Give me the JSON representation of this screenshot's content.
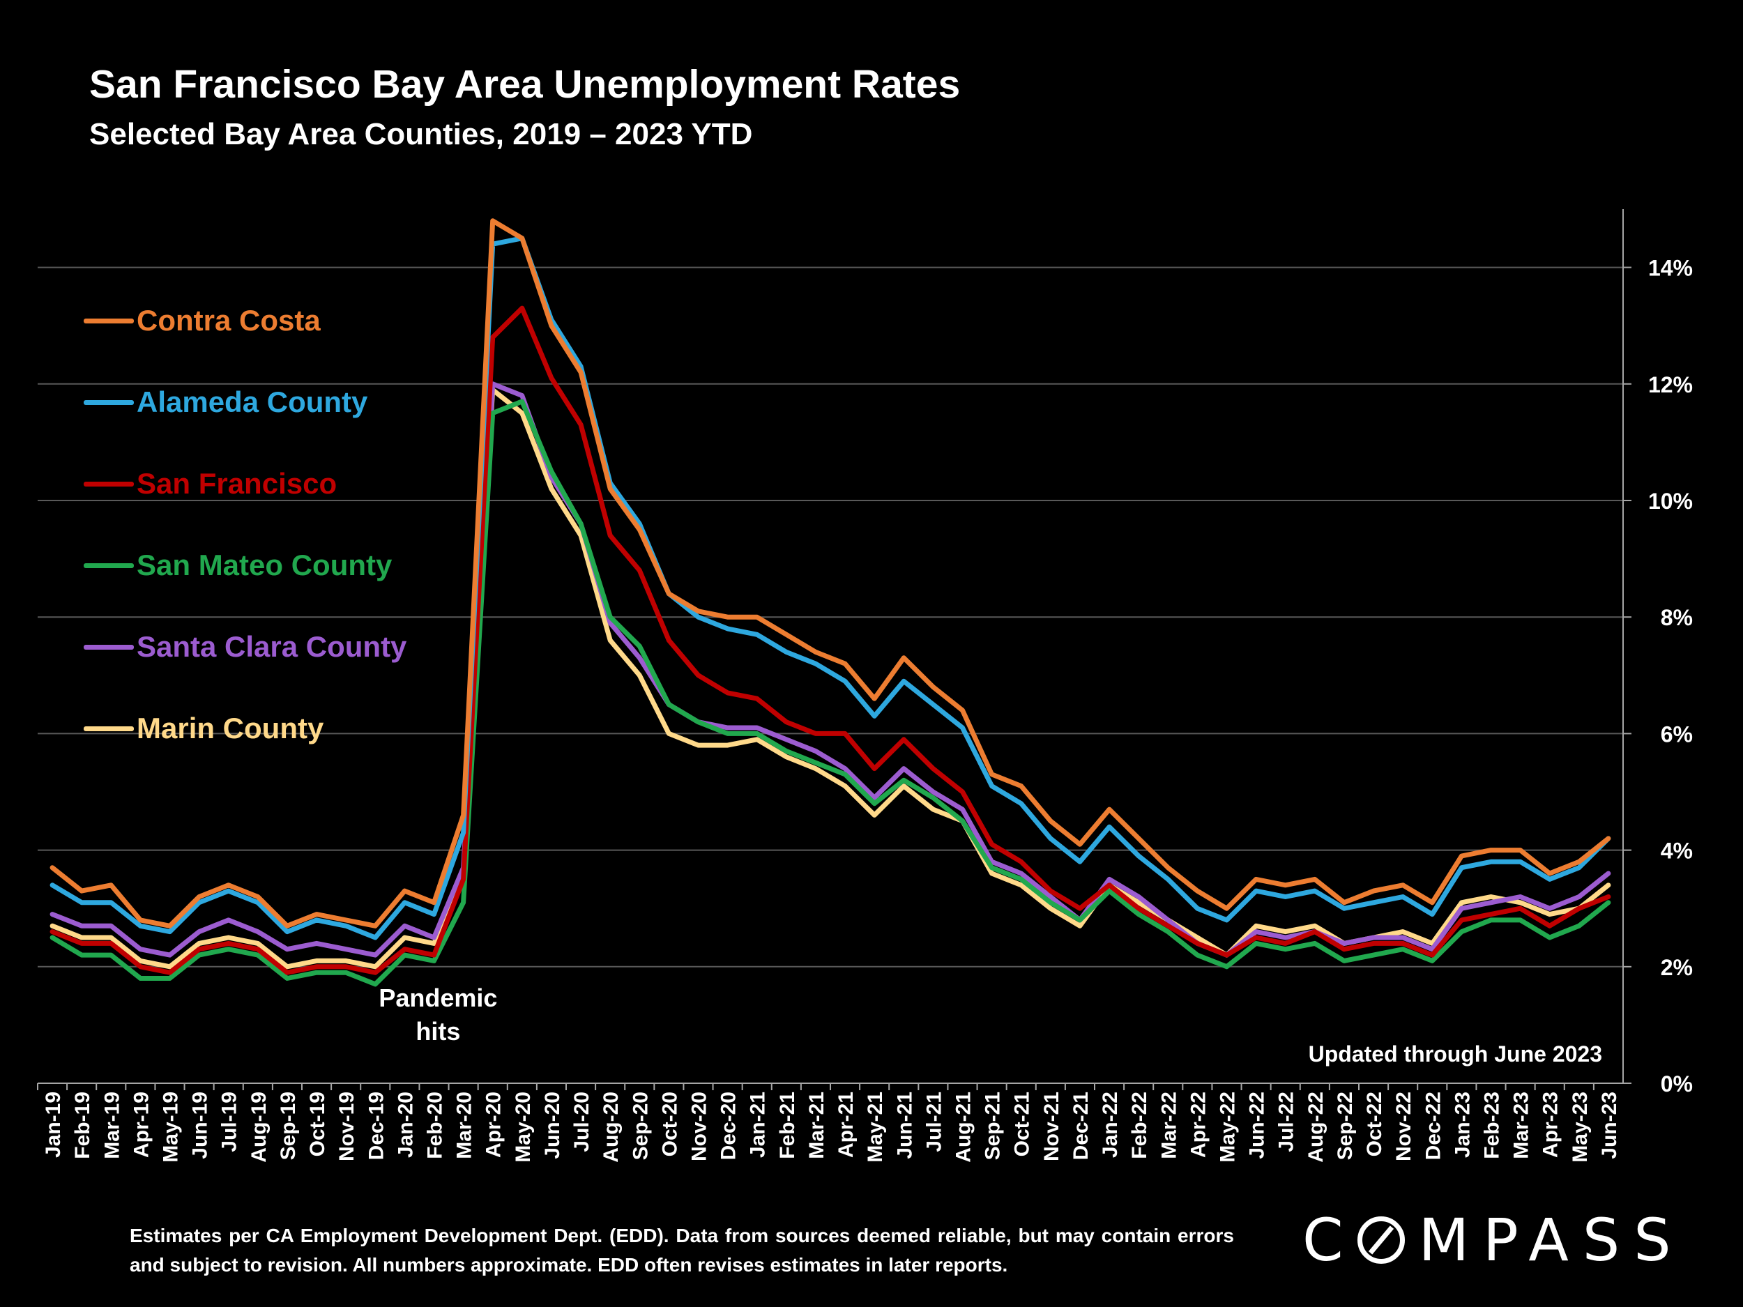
{
  "title": "San Francisco Bay Area Unemployment Rates",
  "subtitle": "Selected Bay Area Counties, 2019 – 2023 YTD",
  "footnote": "Estimates per CA Employment Development Dept. (EDD). Data from sources deemed reliable, but may contain errors and subject to revision. All numbers approximate.  EDD often revises estimates in later reports.",
  "logo": {
    "text_before": "C",
    "text_after": "MPASS",
    "full": "COMPASS"
  },
  "colors": {
    "background": "#000000",
    "gridline": "#595959",
    "text": "#ffffff"
  },
  "chart_data": {
    "type": "line",
    "title": "San Francisco Bay Area Unemployment Rates",
    "subtitle": "Selected Bay Area Counties, 2019 – 2023 YTD",
    "xlabel": "",
    "ylabel": "",
    "ylim": [
      0,
      15
    ],
    "yticks": [
      0,
      2,
      4,
      6,
      8,
      10,
      12,
      14
    ],
    "ytick_labels": [
      "0%",
      "2%",
      "4%",
      "6%",
      "8%",
      "10%",
      "12%",
      "14%"
    ],
    "y_axis_side": "right",
    "grid": true,
    "legend_position": "left",
    "categories": [
      "Jan-19",
      "Feb-19",
      "Mar-19",
      "Apr-19",
      "May-19",
      "Jun-19",
      "Jul-19",
      "Aug-19",
      "Sep-19",
      "Oct-19",
      "Nov-19",
      "Dec-19",
      "Jan-20",
      "Feb-20",
      "Mar-20",
      "Apr-20",
      "May-20",
      "Jun-20",
      "Jul-20",
      "Aug-20",
      "Sep-20",
      "Oct-20",
      "Nov-20",
      "Dec-20",
      "Jan-21",
      "Feb-21",
      "Mar-21",
      "Apr-21",
      "May-21",
      "Jun-21",
      "Jul-21",
      "Aug-21",
      "Sep-21",
      "Oct-21",
      "Nov-21",
      "Dec-21",
      "Jan-22",
      "Feb-22",
      "Mar-22",
      "Apr-22",
      "May-22",
      "Jun-22",
      "Jul-22",
      "Aug-22",
      "Sep-22",
      "Oct-22",
      "Nov-22",
      "Dec-22",
      "Jan-23",
      "Feb-23",
      "Mar-23",
      "Apr-23",
      "May-23",
      "Jun-23"
    ],
    "series": [
      {
        "name": "Contra Costa",
        "color": "#ed7d31",
        "values": [
          3.7,
          3.3,
          3.4,
          2.8,
          2.7,
          3.2,
          3.4,
          3.2,
          2.7,
          2.9,
          2.8,
          2.7,
          3.3,
          3.1,
          4.6,
          14.8,
          14.5,
          13.0,
          12.2,
          10.2,
          9.5,
          8.4,
          8.1,
          8.0,
          8.0,
          7.7,
          7.4,
          7.2,
          6.6,
          7.3,
          6.8,
          6.4,
          5.3,
          5.1,
          4.5,
          4.1,
          4.7,
          4.2,
          3.7,
          3.3,
          3.0,
          3.5,
          3.4,
          3.5,
          3.1,
          3.3,
          3.4,
          3.1,
          3.9,
          4.0,
          4.0,
          3.6,
          3.8,
          4.2
        ]
      },
      {
        "name": "Alameda County",
        "color": "#2ea8df",
        "values": [
          3.4,
          3.1,
          3.1,
          2.7,
          2.6,
          3.1,
          3.3,
          3.1,
          2.6,
          2.8,
          2.7,
          2.5,
          3.1,
          2.9,
          4.3,
          14.4,
          14.5,
          13.1,
          12.3,
          10.3,
          9.6,
          8.4,
          8.0,
          7.8,
          7.7,
          7.4,
          7.2,
          6.9,
          6.3,
          6.9,
          6.5,
          6.1,
          5.1,
          4.8,
          4.2,
          3.8,
          4.4,
          3.9,
          3.5,
          3.0,
          2.8,
          3.3,
          3.2,
          3.3,
          3.0,
          3.1,
          3.2,
          2.9,
          3.7,
          3.8,
          3.8,
          3.5,
          3.7,
          4.2
        ]
      },
      {
        "name": "San Francisco",
        "color": "#c00000",
        "values": [
          2.6,
          2.4,
          2.4,
          2.0,
          1.9,
          2.3,
          2.4,
          2.3,
          1.9,
          2.0,
          2.0,
          1.9,
          2.3,
          2.2,
          3.5,
          12.8,
          13.3,
          12.1,
          11.3,
          9.4,
          8.8,
          7.6,
          7.0,
          6.7,
          6.6,
          6.2,
          6.0,
          6.0,
          5.4,
          5.9,
          5.4,
          5.0,
          4.1,
          3.8,
          3.3,
          3.0,
          3.4,
          3.0,
          2.7,
          2.4,
          2.2,
          2.5,
          2.4,
          2.6,
          2.3,
          2.4,
          2.4,
          2.2,
          2.8,
          2.9,
          3.0,
          2.7,
          3.0,
          3.2
        ]
      },
      {
        "name": "San Mateo County",
        "color": "#21a84e",
        "values": [
          2.5,
          2.2,
          2.2,
          1.8,
          1.8,
          2.2,
          2.3,
          2.2,
          1.8,
          1.9,
          1.9,
          1.7,
          2.2,
          2.1,
          3.1,
          11.5,
          11.7,
          10.5,
          9.6,
          8.0,
          7.5,
          6.5,
          6.2,
          6.0,
          6.0,
          5.7,
          5.5,
          5.3,
          4.8,
          5.2,
          4.9,
          4.5,
          3.7,
          3.5,
          3.1,
          2.8,
          3.3,
          2.9,
          2.6,
          2.2,
          2.0,
          2.4,
          2.3,
          2.4,
          2.1,
          2.2,
          2.3,
          2.1,
          2.6,
          2.8,
          2.8,
          2.5,
          2.7,
          3.1
        ]
      },
      {
        "name": "Santa Clara County",
        "color": "#9c5cd0",
        "values": [
          2.9,
          2.7,
          2.7,
          2.3,
          2.2,
          2.6,
          2.8,
          2.6,
          2.3,
          2.4,
          2.3,
          2.2,
          2.7,
          2.5,
          3.7,
          12.0,
          11.8,
          10.4,
          9.6,
          7.9,
          7.3,
          6.5,
          6.2,
          6.1,
          6.1,
          5.9,
          5.7,
          5.4,
          4.9,
          5.4,
          5.0,
          4.7,
          3.8,
          3.6,
          3.2,
          2.8,
          3.5,
          3.2,
          2.8,
          2.4,
          2.2,
          2.6,
          2.5,
          2.6,
          2.4,
          2.5,
          2.5,
          2.3,
          3.0,
          3.1,
          3.2,
          3.0,
          3.2,
          3.6
        ]
      },
      {
        "name": "Marin County",
        "color": "#ffd98a",
        "values": [
          2.7,
          2.5,
          2.5,
          2.1,
          2.0,
          2.4,
          2.5,
          2.4,
          2.0,
          2.1,
          2.1,
          2.0,
          2.5,
          2.4,
          3.5,
          11.9,
          11.5,
          10.2,
          9.4,
          7.6,
          7.0,
          6.0,
          5.8,
          5.8,
          5.9,
          5.6,
          5.4,
          5.1,
          4.6,
          5.1,
          4.7,
          4.5,
          3.6,
          3.4,
          3.0,
          2.7,
          3.4,
          3.1,
          2.8,
          2.5,
          2.2,
          2.7,
          2.6,
          2.7,
          2.4,
          2.5,
          2.6,
          2.4,
          3.1,
          3.2,
          3.1,
          2.9,
          3.0,
          3.4
        ]
      }
    ],
    "annotations": [
      {
        "text": "Pandemic hits",
        "lines": [
          "Pandemic",
          "hits"
        ],
        "at_category": "Jan-20"
      },
      {
        "text": "Updated through June 2023",
        "position": "bottom-right"
      }
    ]
  }
}
